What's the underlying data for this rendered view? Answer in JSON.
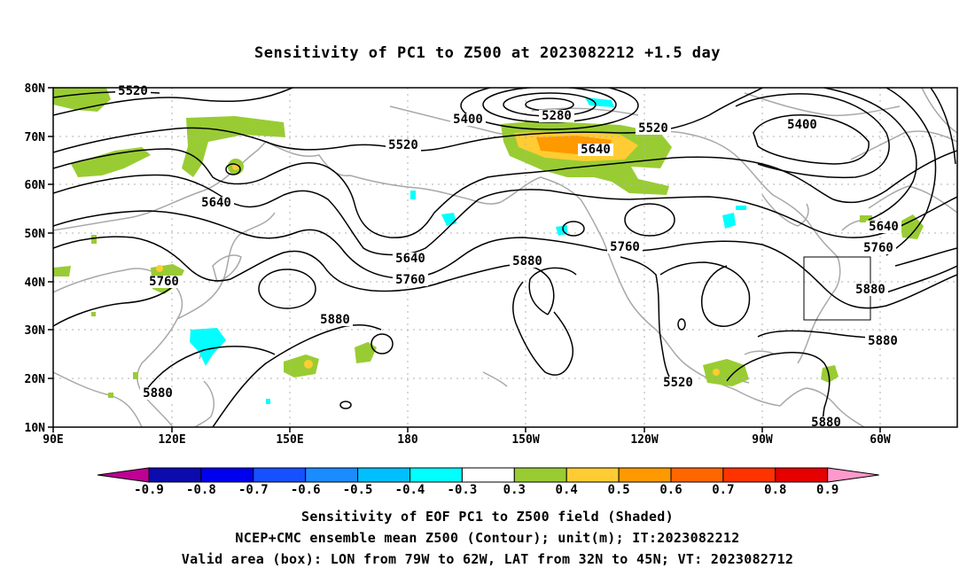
{
  "title": "Sensitivity of PC1 to Z500 at 2023082212 +1.5 day",
  "lat_labels": [
    "80N",
    "70N",
    "60N",
    "50N",
    "40N",
    "30N",
    "20N",
    "10N"
  ],
  "lon_labels": [
    "90E",
    "120E",
    "150E",
    "180",
    "150W",
    "120W",
    "90W",
    "60W"
  ],
  "contour_labels": [
    "5520",
    "5400",
    "5280",
    "5520",
    "5520",
    "5400",
    "5640",
    "5640",
    "5640",
    "5760",
    "5760",
    "5880",
    "5760",
    "5880",
    "5880",
    "5520",
    "5640",
    "5760",
    "5880",
    "5880",
    "5880"
  ],
  "colorbar": {
    "labels": [
      "-0.9",
      "-0.8",
      "-0.7",
      "-0.6",
      "-0.5",
      "-0.4",
      "-0.3",
      "0.3",
      "0.4",
      "0.5",
      "0.6",
      "0.7",
      "0.8",
      "0.9"
    ],
    "colors": [
      "#bf0094",
      "#0b0bae",
      "#0000ee",
      "#1650ff",
      "#1a8cff",
      "#00bfff",
      "#00ffff",
      "#ffffff",
      "#99cc33",
      "#ffcc33",
      "#ff9900",
      "#ff6600",
      "#ff3300",
      "#e60000",
      "#ff99cc"
    ]
  },
  "captions": [
    "Sensitivity of EOF PC1 to Z500 field (Shaded)",
    "NCEP+CMC ensemble mean Z500 (Contour); unit(m); IT:2023082212",
    "Valid area (box): LON from 79W to 62W, LAT from 32N to 45N; VT: 2023082712"
  ]
}
